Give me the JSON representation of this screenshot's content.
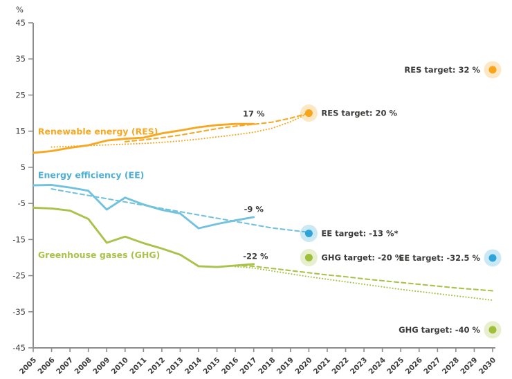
{
  "chart_data": {
    "type": "line",
    "title": "",
    "ylabel": "%",
    "ylim": [
      -45,
      45
    ],
    "yticks": [
      45,
      35,
      25,
      15,
      5,
      -5,
      -15,
      -25,
      -35,
      -45
    ],
    "x_years": [
      2005,
      2006,
      2007,
      2008,
      2009,
      2010,
      2011,
      2012,
      2013,
      2014,
      2015,
      2016,
      2017,
      2018,
      2019,
      2020,
      2021,
      2022,
      2023,
      2024,
      2025,
      2026,
      2027,
      2028,
      2029,
      2030
    ],
    "grid": false,
    "legend_position": "none",
    "series": [
      {
        "id": "res-actual",
        "style": "solid",
        "color": "#F7A823",
        "start_year": 2005,
        "values": [
          9.0,
          9.5,
          10.4,
          11.1,
          12.4,
          12.9,
          13.2,
          14.4,
          15.2,
          16.1,
          16.7,
          17.0,
          17.0
        ]
      },
      {
        "id": "res-trajectory-dashed",
        "style": "dashed",
        "color": "#F7A823",
        "start_year": 2010,
        "values": [
          12.1,
          12.6,
          13.2,
          13.9,
          14.8,
          15.7,
          16.4,
          16.9,
          17.5,
          18.6,
          20.0
        ]
      },
      {
        "id": "res-trajectory-dotted",
        "style": "dotted",
        "color": "#F7A823",
        "start_year": 2006,
        "values": [
          10.6,
          10.8,
          11.0,
          11.2,
          11.4,
          11.6,
          11.9,
          12.3,
          12.8,
          13.4,
          14.0,
          14.7,
          15.8,
          17.6,
          20.0
        ]
      },
      {
        "id": "ee-actual",
        "style": "solid",
        "color": "#72C2DD",
        "start_year": 2005,
        "values": [
          0.0,
          0.1,
          -0.6,
          -1.5,
          -6.7,
          -3.4,
          -5.3,
          -6.8,
          -7.8,
          -11.9,
          -10.7,
          -9.7,
          -8.8
        ]
      },
      {
        "id": "ee-trajectory-dashed",
        "style": "dashed",
        "color": "#72C2DD",
        "start_year": 2006,
        "values": [
          -1.0,
          -1.9,
          -2.8,
          -3.7,
          -4.6,
          -5.5,
          -6.4,
          -7.3,
          -8.2,
          -9.1,
          -10.0,
          -10.9,
          -11.8,
          -12.4,
          -13.0
        ]
      },
      {
        "id": "ghg-actual",
        "style": "solid",
        "color": "#A9C249",
        "start_year": 2005,
        "values": [
          -6.2,
          -6.4,
          -7.0,
          -9.3,
          -15.9,
          -14.2,
          -16.0,
          -17.5,
          -19.2,
          -22.4,
          -22.6,
          -22.2,
          -21.8
        ]
      },
      {
        "id": "ghg-projection-dashed",
        "style": "dashed",
        "color": "#A9C249",
        "start_year": 2016,
        "values": [
          -22.2,
          -22.4,
          -23.0,
          -23.6,
          -24.2,
          -24.8,
          -25.3,
          -25.9,
          -26.4,
          -26.9,
          -27.4,
          -27.9,
          -28.4,
          -28.8,
          -29.2
        ]
      },
      {
        "id": "ghg-projection-dotted",
        "style": "dotted",
        "color": "#A9C249",
        "start_year": 2016,
        "values": [
          -22.5,
          -22.9,
          -23.7,
          -24.5,
          -25.3,
          -26.0,
          -26.7,
          -27.4,
          -28.1,
          -28.8,
          -29.4,
          -30.0,
          -30.6,
          -31.2,
          -31.8
        ]
      }
    ],
    "series_labels": [
      {
        "text": "Renewable energy (RES)",
        "color": "#F7A823",
        "year": 2005.26,
        "value": 14.8
      },
      {
        "text": "Energy efficiency (EE)",
        "color": "#4FAFD3",
        "year": 2005.26,
        "value": 2.8
      },
      {
        "text": "Greenhouse gases (GHG)",
        "color": "#A9C249",
        "year": 2005.26,
        "value": -19.3
      }
    ],
    "annotations": [
      {
        "text": "17 %",
        "year": 2017,
        "value": 19.8
      },
      {
        "text": "-9 %",
        "year": 2017,
        "value": -6.6
      },
      {
        "text": "-22 %",
        "year": 2017.1,
        "value": -19.6
      }
    ],
    "targets": [
      {
        "label": "RES target: 20 %",
        "year": 2020,
        "target_value": 20,
        "plot_value": 20,
        "color": "#F9A51B",
        "side": "right"
      },
      {
        "label": "EE target: -13 %*",
        "year": 2020,
        "target_value": -13,
        "plot_value": -13.3,
        "color": "#2FA4D9",
        "side": "right"
      },
      {
        "label": "GHG target: -20 %",
        "year": 2020,
        "target_value": -20,
        "plot_value": -20,
        "color": "#9FBE3A",
        "side": "right"
      },
      {
        "label": "RES target: 32 %",
        "year": 2030,
        "target_value": 32,
        "plot_value": 32,
        "color": "#F9A51B",
        "side": "left"
      },
      {
        "label": "EE target: -32.5 %",
        "year": 2030,
        "target_value": -32.5,
        "plot_value": -20.1,
        "color": "#2FA4D9",
        "side": "left"
      },
      {
        "label": "GHG target: -40 %",
        "year": 2030,
        "target_value": -40,
        "plot_value": -40,
        "color": "#9FBE3A",
        "side": "left"
      }
    ],
    "axis_color": "#8C8C8C",
    "text_color": "#3C3C3B"
  }
}
